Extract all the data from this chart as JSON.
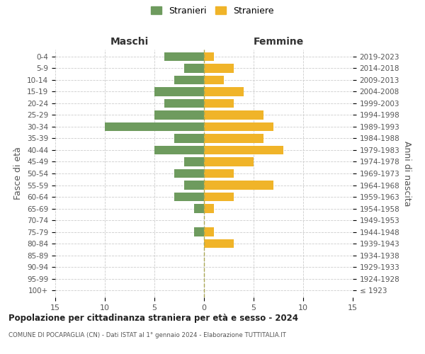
{
  "age_groups": [
    "100+",
    "95-99",
    "90-94",
    "85-89",
    "80-84",
    "75-79",
    "70-74",
    "65-69",
    "60-64",
    "55-59",
    "50-54",
    "45-49",
    "40-44",
    "35-39",
    "30-34",
    "25-29",
    "20-24",
    "15-19",
    "10-14",
    "5-9",
    "0-4"
  ],
  "birth_years": [
    "≤ 1923",
    "1924-1928",
    "1929-1933",
    "1934-1938",
    "1939-1943",
    "1944-1948",
    "1949-1953",
    "1954-1958",
    "1959-1963",
    "1964-1968",
    "1969-1973",
    "1974-1978",
    "1979-1983",
    "1984-1988",
    "1989-1993",
    "1994-1998",
    "1999-2003",
    "2004-2008",
    "2009-2013",
    "2014-2018",
    "2019-2023"
  ],
  "males": [
    0,
    0,
    0,
    0,
    0,
    1,
    0,
    1,
    3,
    2,
    3,
    2,
    5,
    3,
    10,
    5,
    4,
    5,
    3,
    2,
    4
  ],
  "females": [
    0,
    0,
    0,
    0,
    3,
    1,
    0,
    1,
    3,
    7,
    3,
    5,
    8,
    6,
    7,
    6,
    3,
    4,
    2,
    3,
    1
  ],
  "male_color": "#6e9b5e",
  "female_color": "#f0b429",
  "bar_height": 0.75,
  "xlim": 15,
  "title": "Popolazione per cittadinanza straniera per età e sesso - 2024",
  "subtitle": "COMUNE DI POCAPAGLIA (CN) - Dati ISTAT al 1° gennaio 2024 - Elaborazione TUTTITALIA.IT",
  "xlabel_left": "Maschi",
  "xlabel_right": "Femmine",
  "ylabel_left": "Fasce di età",
  "ylabel_right": "Anni di nascita",
  "legend_male": "Stranieri",
  "legend_female": "Straniere",
  "background_color": "#ffffff",
  "grid_color": "#cccccc"
}
